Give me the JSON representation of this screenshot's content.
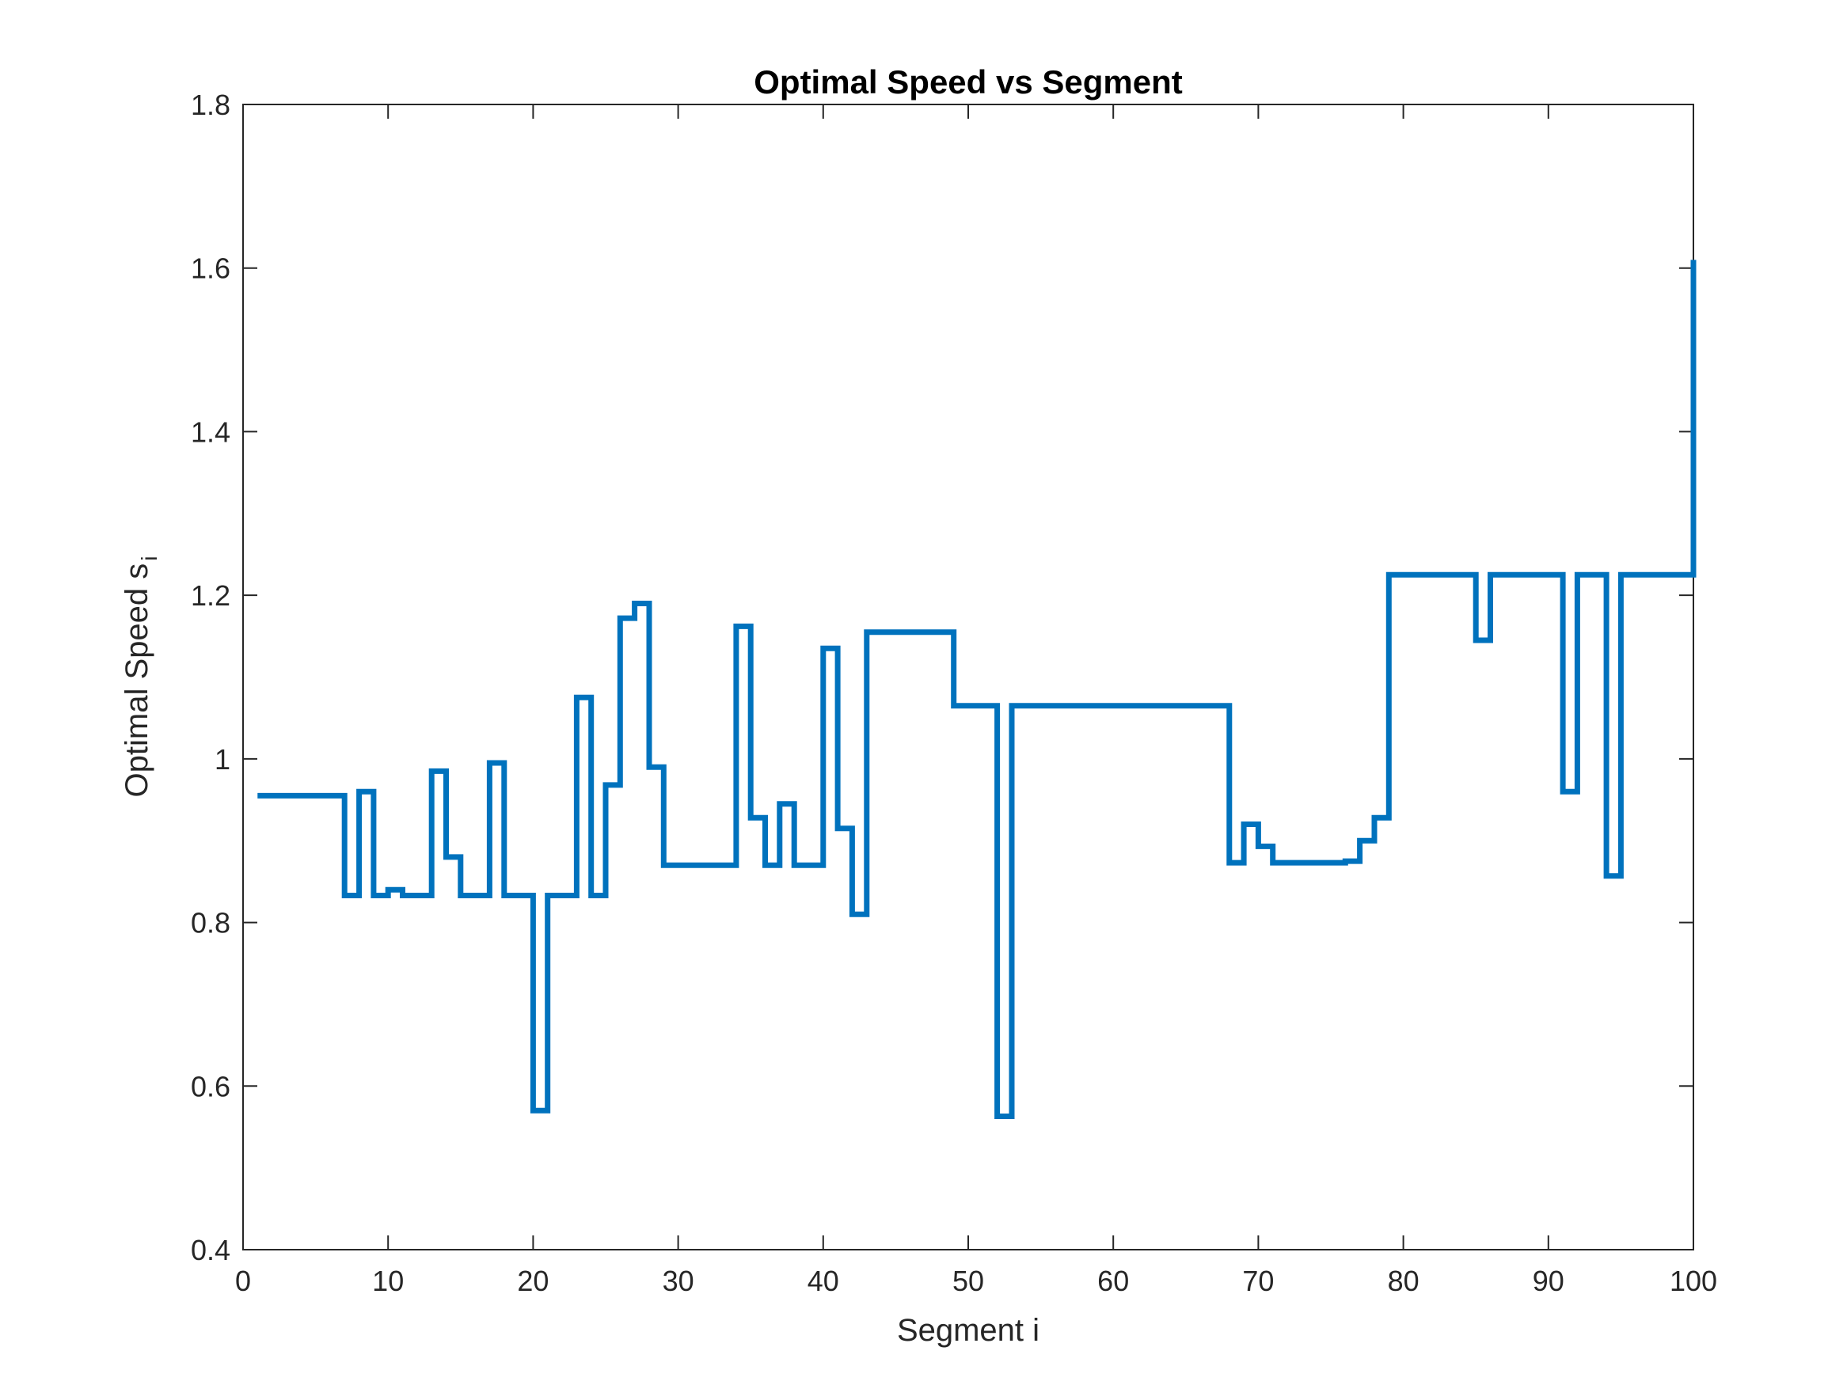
{
  "chart_data": {
    "type": "line",
    "title": "Optimal Speed vs Segment",
    "xlabel": "Segment i",
    "ylabel": "Optimal Speed s",
    "ylabel_subscript": "i",
    "xlim": [
      0,
      100
    ],
    "ylim": [
      0.4,
      1.8
    ],
    "xticks": [
      0,
      10,
      20,
      30,
      40,
      50,
      60,
      70,
      80,
      90,
      100
    ],
    "xtick_labels": [
      "0",
      "10",
      "20",
      "30",
      "40",
      "50",
      "60",
      "70",
      "80",
      "90",
      "100"
    ],
    "yticks": [
      0.4,
      0.6,
      0.8,
      1.0,
      1.2,
      1.4,
      1.6,
      1.8
    ],
    "ytick_labels": [
      "0.4",
      "0.6",
      "0.8",
      "1",
      "1.2",
      "1.4",
      "1.6",
      "1.8"
    ],
    "grid": false,
    "legend": "none",
    "line_color": "#0072BD",
    "series": [
      {
        "x": [
          1,
          7,
          7,
          8,
          8,
          9,
          9,
          10,
          10,
          11,
          11,
          13,
          13,
          14,
          14,
          15,
          15,
          17,
          17,
          18,
          18,
          20,
          20,
          21,
          21,
          23,
          23,
          24,
          24,
          25,
          25,
          26,
          26,
          27,
          27,
          28,
          28,
          29,
          29,
          34,
          34,
          35,
          35,
          36,
          36,
          37,
          37,
          38,
          38,
          40,
          40,
          41,
          41,
          42,
          42,
          43,
          43,
          49,
          49,
          52,
          52,
          53,
          53,
          68,
          68,
          69,
          69,
          70,
          70,
          71,
          71,
          76,
          76,
          77,
          77,
          78,
          78,
          79,
          79,
          85,
          85,
          86,
          86,
          91,
          91,
          92,
          92,
          94,
          94,
          95,
          95,
          100,
          100
        ],
        "y": [
          0.955,
          0.955,
          0.833,
          0.833,
          0.96,
          0.96,
          0.833,
          0.833,
          0.84,
          0.84,
          0.833,
          0.833,
          0.985,
          0.985,
          0.88,
          0.88,
          0.833,
          0.833,
          0.995,
          0.995,
          0.833,
          0.833,
          0.57,
          0.57,
          0.833,
          0.833,
          1.075,
          1.075,
          0.833,
          0.833,
          0.968,
          0.968,
          1.172,
          1.172,
          1.19,
          1.19,
          0.99,
          0.99,
          0.87,
          0.87,
          1.162,
          1.162,
          0.928,
          0.928,
          0.87,
          0.87,
          0.945,
          0.945,
          0.87,
          0.87,
          1.135,
          1.135,
          0.915,
          0.915,
          0.81,
          0.81,
          1.155,
          1.155,
          1.065,
          1.065,
          0.563,
          0.563,
          1.065,
          1.065,
          0.873,
          0.873,
          0.92,
          0.92,
          0.893,
          0.893,
          0.873,
          0.873,
          0.875,
          0.875,
          0.9,
          0.9,
          0.928,
          0.928,
          1.225,
          1.225,
          1.145,
          1.145,
          1.225,
          1.225,
          0.96,
          0.96,
          1.225,
          1.225,
          0.857,
          0.857,
          1.225,
          1.225,
          1.61
        ]
      }
    ]
  }
}
